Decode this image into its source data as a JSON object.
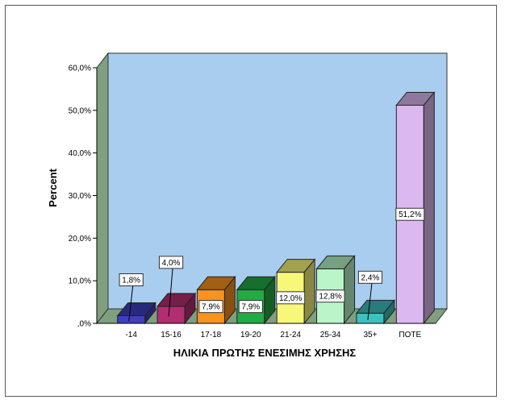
{
  "chart_data": {
    "type": "bar",
    "title": "",
    "xlabel": "ΗΛΙΚΙΑ ΠΡΩΤΗΣ ΕΝΕΣΙΜΗΣ ΧΡΗΣΗΣ",
    "ylabel": "Percent",
    "ylim": [
      0,
      60
    ],
    "yticks": [
      0,
      10,
      20,
      30,
      40,
      50,
      60
    ],
    "ytick_labels": [
      ",0%",
      "10,0%",
      "20,0%",
      "30,0%",
      "40,0%",
      "50,0%",
      "60,0%"
    ],
    "categories": [
      "-14",
      "15-16",
      "17-18",
      "19-20",
      "21-24",
      "25-34",
      "35+",
      "ΠΟΤΕ"
    ],
    "values": [
      1.8,
      4.0,
      7.9,
      7.9,
      12.0,
      12.8,
      2.4,
      51.2
    ],
    "data_labels": [
      "1,8%",
      "4,0%",
      "7,9%",
      "7,9%",
      "12,0%",
      "12,8%",
      "2,4%",
      "51,2%"
    ],
    "colors": [
      "#3f3fbf",
      "#b22e6e",
      "#f7931e",
      "#22aa44",
      "#f7f77a",
      "#b9f5c9",
      "#3fbfbf",
      "#dcb8f0"
    ],
    "grid": false,
    "legend": "none",
    "style": "3d"
  }
}
